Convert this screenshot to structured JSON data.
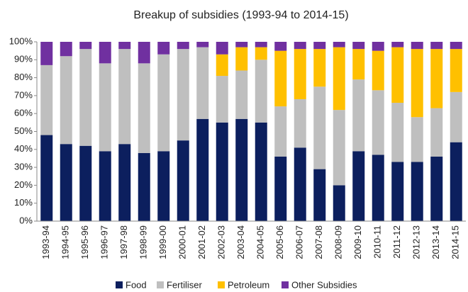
{
  "chart_data": {
    "type": "stacked_bar",
    "title": "Breakup of subsidies (1993-94 to 2014-15)",
    "categories": [
      "1993-94",
      "1994-95",
      "1995-96",
      "1996-97",
      "1997-98",
      "1998-99",
      "1999-00",
      "2000-01",
      "2001-02",
      "2002-03",
      "2003-04",
      "2004-05",
      "2005-06",
      "2006-07",
      "2007-08",
      "2008-09",
      "2009-10",
      "2010-11",
      "2011-12",
      "2012-13",
      "2013-14",
      "2014-15"
    ],
    "series": [
      {
        "name": "Food",
        "color": "#0c1f5e",
        "values": [
          48,
          43,
          42,
          39,
          43,
          38,
          39,
          45,
          57,
          55,
          57,
          55,
          36,
          41,
          29,
          20,
          39,
          37,
          33,
          33,
          36,
          44
        ]
      },
      {
        "name": "Fertiliser",
        "color": "#bfbfbf",
        "values": [
          39,
          49,
          54,
          49,
          53,
          50,
          54,
          51,
          40,
          26,
          27,
          35,
          28,
          27,
          46,
          42,
          40,
          36,
          33,
          25,
          27,
          28
        ]
      },
      {
        "name": "Petroleum",
        "color": "#ffc000",
        "values": [
          0,
          0,
          0,
          0,
          0,
          0,
          0,
          0,
          0,
          12,
          13,
          7,
          31,
          28,
          21,
          35,
          17,
          22,
          31,
          38,
          33,
          24
        ]
      },
      {
        "name": "Other Subsidies",
        "color": "#7030a0",
        "values": [
          13,
          8,
          4,
          12,
          4,
          12,
          7,
          4,
          3,
          7,
          3,
          3,
          5,
          4,
          4,
          3,
          4,
          5,
          3,
          4,
          4,
          4
        ]
      }
    ],
    "ylim": [
      0,
      100
    ],
    "yticks": [
      {
        "value": 0,
        "label": "0%"
      },
      {
        "value": 10,
        "label": "10%"
      },
      {
        "value": 20,
        "label": "20%"
      },
      {
        "value": 30,
        "label": "30%"
      },
      {
        "value": 40,
        "label": "40%"
      },
      {
        "value": 50,
        "label": "50%"
      },
      {
        "value": 60,
        "label": "60%"
      },
      {
        "value": 70,
        "label": "70%"
      },
      {
        "value": 80,
        "label": "80%"
      },
      {
        "value": 90,
        "label": "90%"
      },
      {
        "value": 100,
        "label": "100%"
      }
    ],
    "legend": "bottom"
  }
}
